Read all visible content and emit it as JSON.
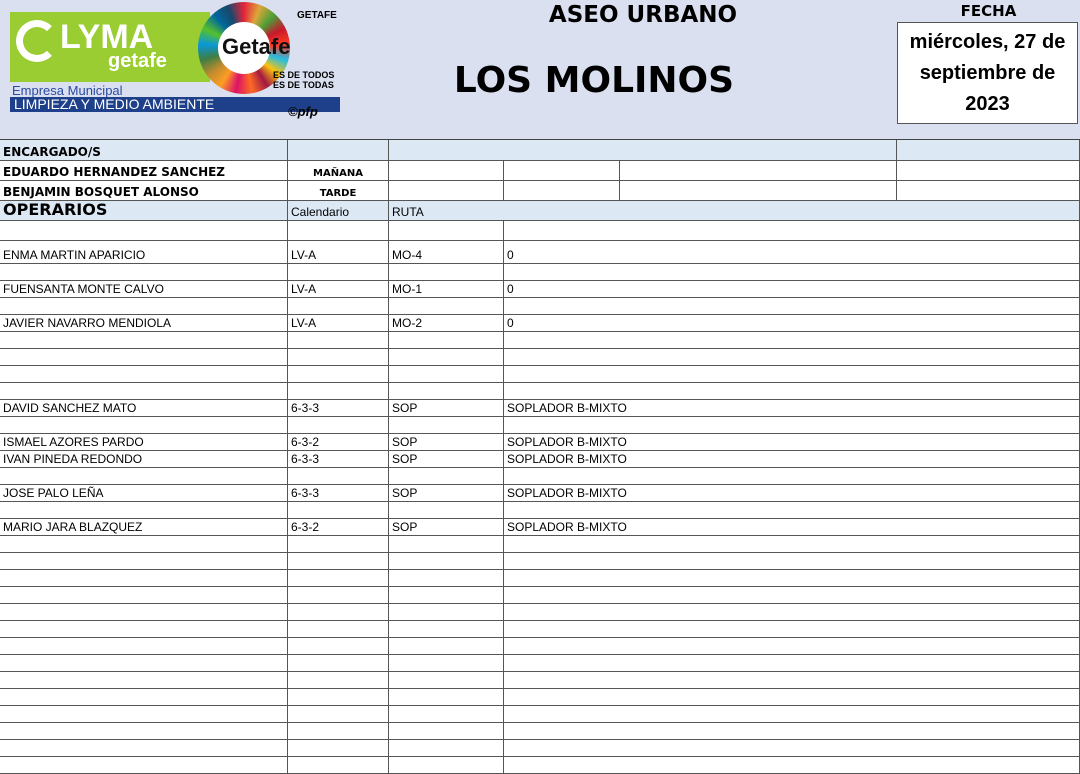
{
  "logo": {
    "brand": "LYMA",
    "sub": "getafe",
    "empresa": "Empresa Municipal",
    "division": "LIMPIEZA Y MEDIO AMBIENTE",
    "city_logo": "Getafe",
    "ayuntamiento": "GETAFE",
    "slogan": "ES DE TODOS ES DE TODAS",
    "credit": "©pfp"
  },
  "header": {
    "title": "ASEO URBANO",
    "zone": "LOS MOLINOS",
    "fecha_label": "FECHA",
    "fecha": "miércoles, 27 de septiembre de 2023"
  },
  "encargados": {
    "label": "ENCARGADO/S",
    "rows": [
      {
        "name": "EDUARDO HERNANDEZ SANCHEZ",
        "turno": "MAÑANA"
      },
      {
        "name": "BENJAMIN BOSQUET ALONSO",
        "turno": "TARDE"
      }
    ]
  },
  "operarios": {
    "label": "OPERARIOS",
    "col_calendario": "Calendario",
    "col_ruta": "RUTA",
    "rows": [
      {},
      {
        "name": "ENMA MARTIN APARICIO",
        "cal": "LV-A",
        "ruta": "MO-4",
        "det": "0"
      },
      {},
      {
        "name": "FUENSANTA MONTE CALVO",
        "cal": "LV-A",
        "ruta": "MO-1",
        "det": "0"
      },
      {},
      {
        "name": "JAVIER NAVARRO MENDIOLA",
        "cal": "LV-A",
        "ruta": "MO-2",
        "det": "0"
      },
      {},
      {},
      {},
      {},
      {
        "name": "DAVID SANCHEZ MATO",
        "cal": "6-3-3",
        "ruta": "SOP",
        "det": "SOPLADOR B-MIXTO"
      },
      {},
      {
        "name": "ISMAEL AZORES PARDO",
        "cal": "6-3-2",
        "ruta": "SOP",
        "det": "SOPLADOR B-MIXTO"
      },
      {
        "name": "IVAN PINEDA REDONDO",
        "cal": "6-3-3",
        "ruta": "SOP",
        "det": "SOPLADOR B-MIXTO"
      },
      {},
      {
        "name": "JOSE PALO LEÑA",
        "cal": "6-3-3",
        "ruta": "SOP",
        "det": "SOPLADOR B-MIXTO"
      },
      {},
      {
        "name": "MARIO JARA BLAZQUEZ",
        "cal": "6-3-2",
        "ruta": "SOP",
        "det": "SOPLADOR B-MIXTO"
      },
      {},
      {},
      {},
      {},
      {},
      {},
      {},
      {},
      {},
      {},
      {},
      {},
      {},
      {}
    ]
  }
}
